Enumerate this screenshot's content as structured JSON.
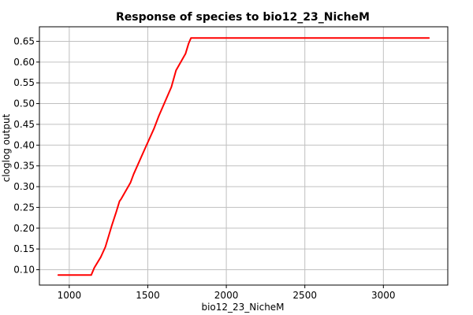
{
  "chart_data": {
    "type": "line",
    "title": "Response of species to bio12_23_NicheM",
    "xlabel": "bio12_23_NicheM",
    "ylabel": "cloglog output",
    "xlim": [
      810,
      3410
    ],
    "ylim": [
      0.063,
      0.685
    ],
    "xticks": [
      1000,
      1500,
      2000,
      2500,
      3000
    ],
    "yticks": [
      0.1,
      0.15,
      0.2,
      0.25,
      0.3,
      0.35,
      0.4,
      0.45,
      0.5,
      0.55,
      0.6,
      0.65
    ],
    "grid": true,
    "legend": "none",
    "series": [
      {
        "color": "#ff0000",
        "x": [
          930,
          1140,
          1160,
          1200,
          1230,
          1270,
          1300,
          1320,
          1330,
          1390,
          1410,
          1480,
          1540,
          1570,
          1650,
          1680,
          1740,
          1760,
          1775,
          3290
        ],
        "y": [
          0.087,
          0.087,
          0.105,
          0.13,
          0.155,
          0.205,
          0.24,
          0.265,
          0.27,
          0.31,
          0.33,
          0.39,
          0.44,
          0.47,
          0.54,
          0.58,
          0.62,
          0.645,
          0.658,
          0.658
        ]
      }
    ]
  }
}
